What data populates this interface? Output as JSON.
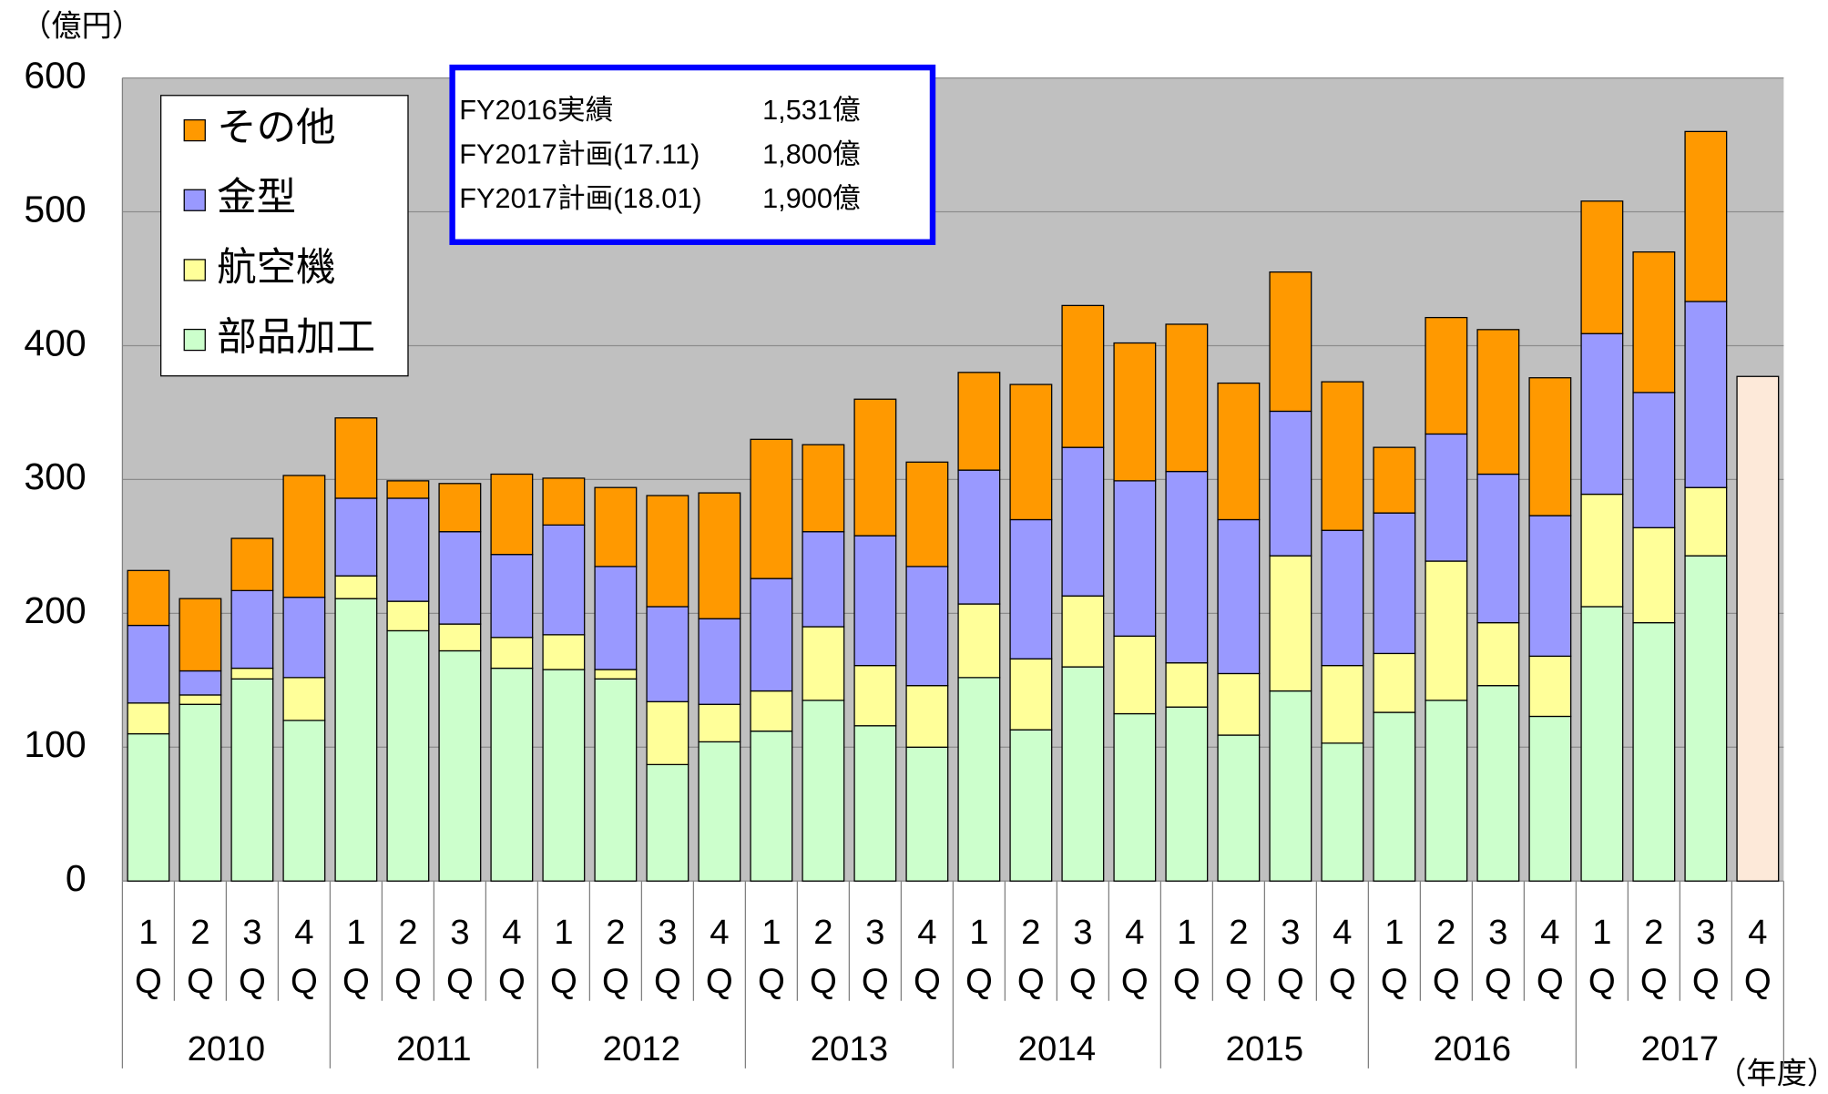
{
  "chart_data": {
    "type": "stacked_bar",
    "y_unit_label": "（億円）",
    "x_unit_label": "（年度）",
    "categories": [
      "1Q",
      "2Q",
      "3Q",
      "4Q",
      "1Q",
      "2Q",
      "3Q",
      "4Q",
      "1Q",
      "2Q",
      "3Q",
      "4Q",
      "1Q",
      "2Q",
      "3Q",
      "4Q",
      "1Q",
      "2Q",
      "3Q",
      "4Q",
      "1Q",
      "2Q",
      "3Q",
      "4Q",
      "1Q",
      "2Q",
      "3Q",
      "4Q",
      "1Q",
      "2Q",
      "3Q",
      "4Q"
    ],
    "groups": [
      {
        "label": "2010",
        "size": 4
      },
      {
        "label": "2011",
        "size": 4
      },
      {
        "label": "2012",
        "size": 4
      },
      {
        "label": "2013",
        "size": 4
      },
      {
        "label": "2014",
        "size": 4
      },
      {
        "label": "2015",
        "size": 4
      },
      {
        "label": "2016",
        "size": 4
      },
      {
        "label": "2017",
        "size": 4
      }
    ],
    "series": [
      {
        "name": "部品加工",
        "color": "#ccffcc",
        "values": [
          110,
          132,
          151,
          120,
          211,
          187,
          172,
          159,
          158,
          151,
          87,
          104,
          112,
          135,
          116,
          100,
          152,
          113,
          160,
          125,
          130,
          109,
          142,
          103,
          126,
          135,
          146,
          123,
          205,
          193,
          243,
          null
        ]
      },
      {
        "name": "航空機",
        "color": "#ffff99",
        "values": [
          23,
          7,
          8,
          32,
          17,
          22,
          20,
          23,
          26,
          7,
          47,
          28,
          30,
          55,
          45,
          46,
          55,
          53,
          53,
          58,
          33,
          46,
          101,
          58,
          44,
          104,
          47,
          45,
          84,
          71,
          51,
          null
        ]
      },
      {
        "name": "金型",
        "color": "#9999ff",
        "values": [
          58,
          18,
          58,
          60,
          58,
          77,
          69,
          62,
          82,
          77,
          71,
          64,
          84,
          71,
          97,
          89,
          100,
          104,
          111,
          116,
          143,
          115,
          108,
          101,
          105,
          95,
          111,
          105,
          120,
          101,
          139,
          null
        ]
      },
      {
        "name": "その他",
        "color": "#ff9900",
        "values": [
          41,
          54,
          39,
          91,
          60,
          13,
          36,
          60,
          35,
          59,
          83,
          94,
          104,
          65,
          102,
          78,
          73,
          101,
          106,
          103,
          110,
          102,
          104,
          111,
          49,
          87,
          108,
          103,
          99,
          105,
          127,
          null
        ]
      },
      {
        "color": "#fde9d9",
        "values": [
          null,
          null,
          null,
          null,
          null,
          null,
          null,
          null,
          null,
          null,
          null,
          null,
          null,
          null,
          null,
          null,
          null,
          null,
          null,
          null,
          null,
          null,
          null,
          null,
          null,
          null,
          null,
          null,
          null,
          null,
          null,
          377
        ]
      }
    ],
    "ylim": [
      0,
      600
    ],
    "yticks": [
      0,
      100,
      200,
      300,
      400,
      500,
      600
    ],
    "grid": true,
    "annotation_box": {
      "color": "#0000ff",
      "rows": [
        [
          "FY2016実績",
          "1,531億"
        ],
        [
          "FY2017計画(17.11)",
          "1,800億"
        ],
        [
          "FY2017計画(18.01)",
          "1,900億"
        ]
      ]
    }
  }
}
